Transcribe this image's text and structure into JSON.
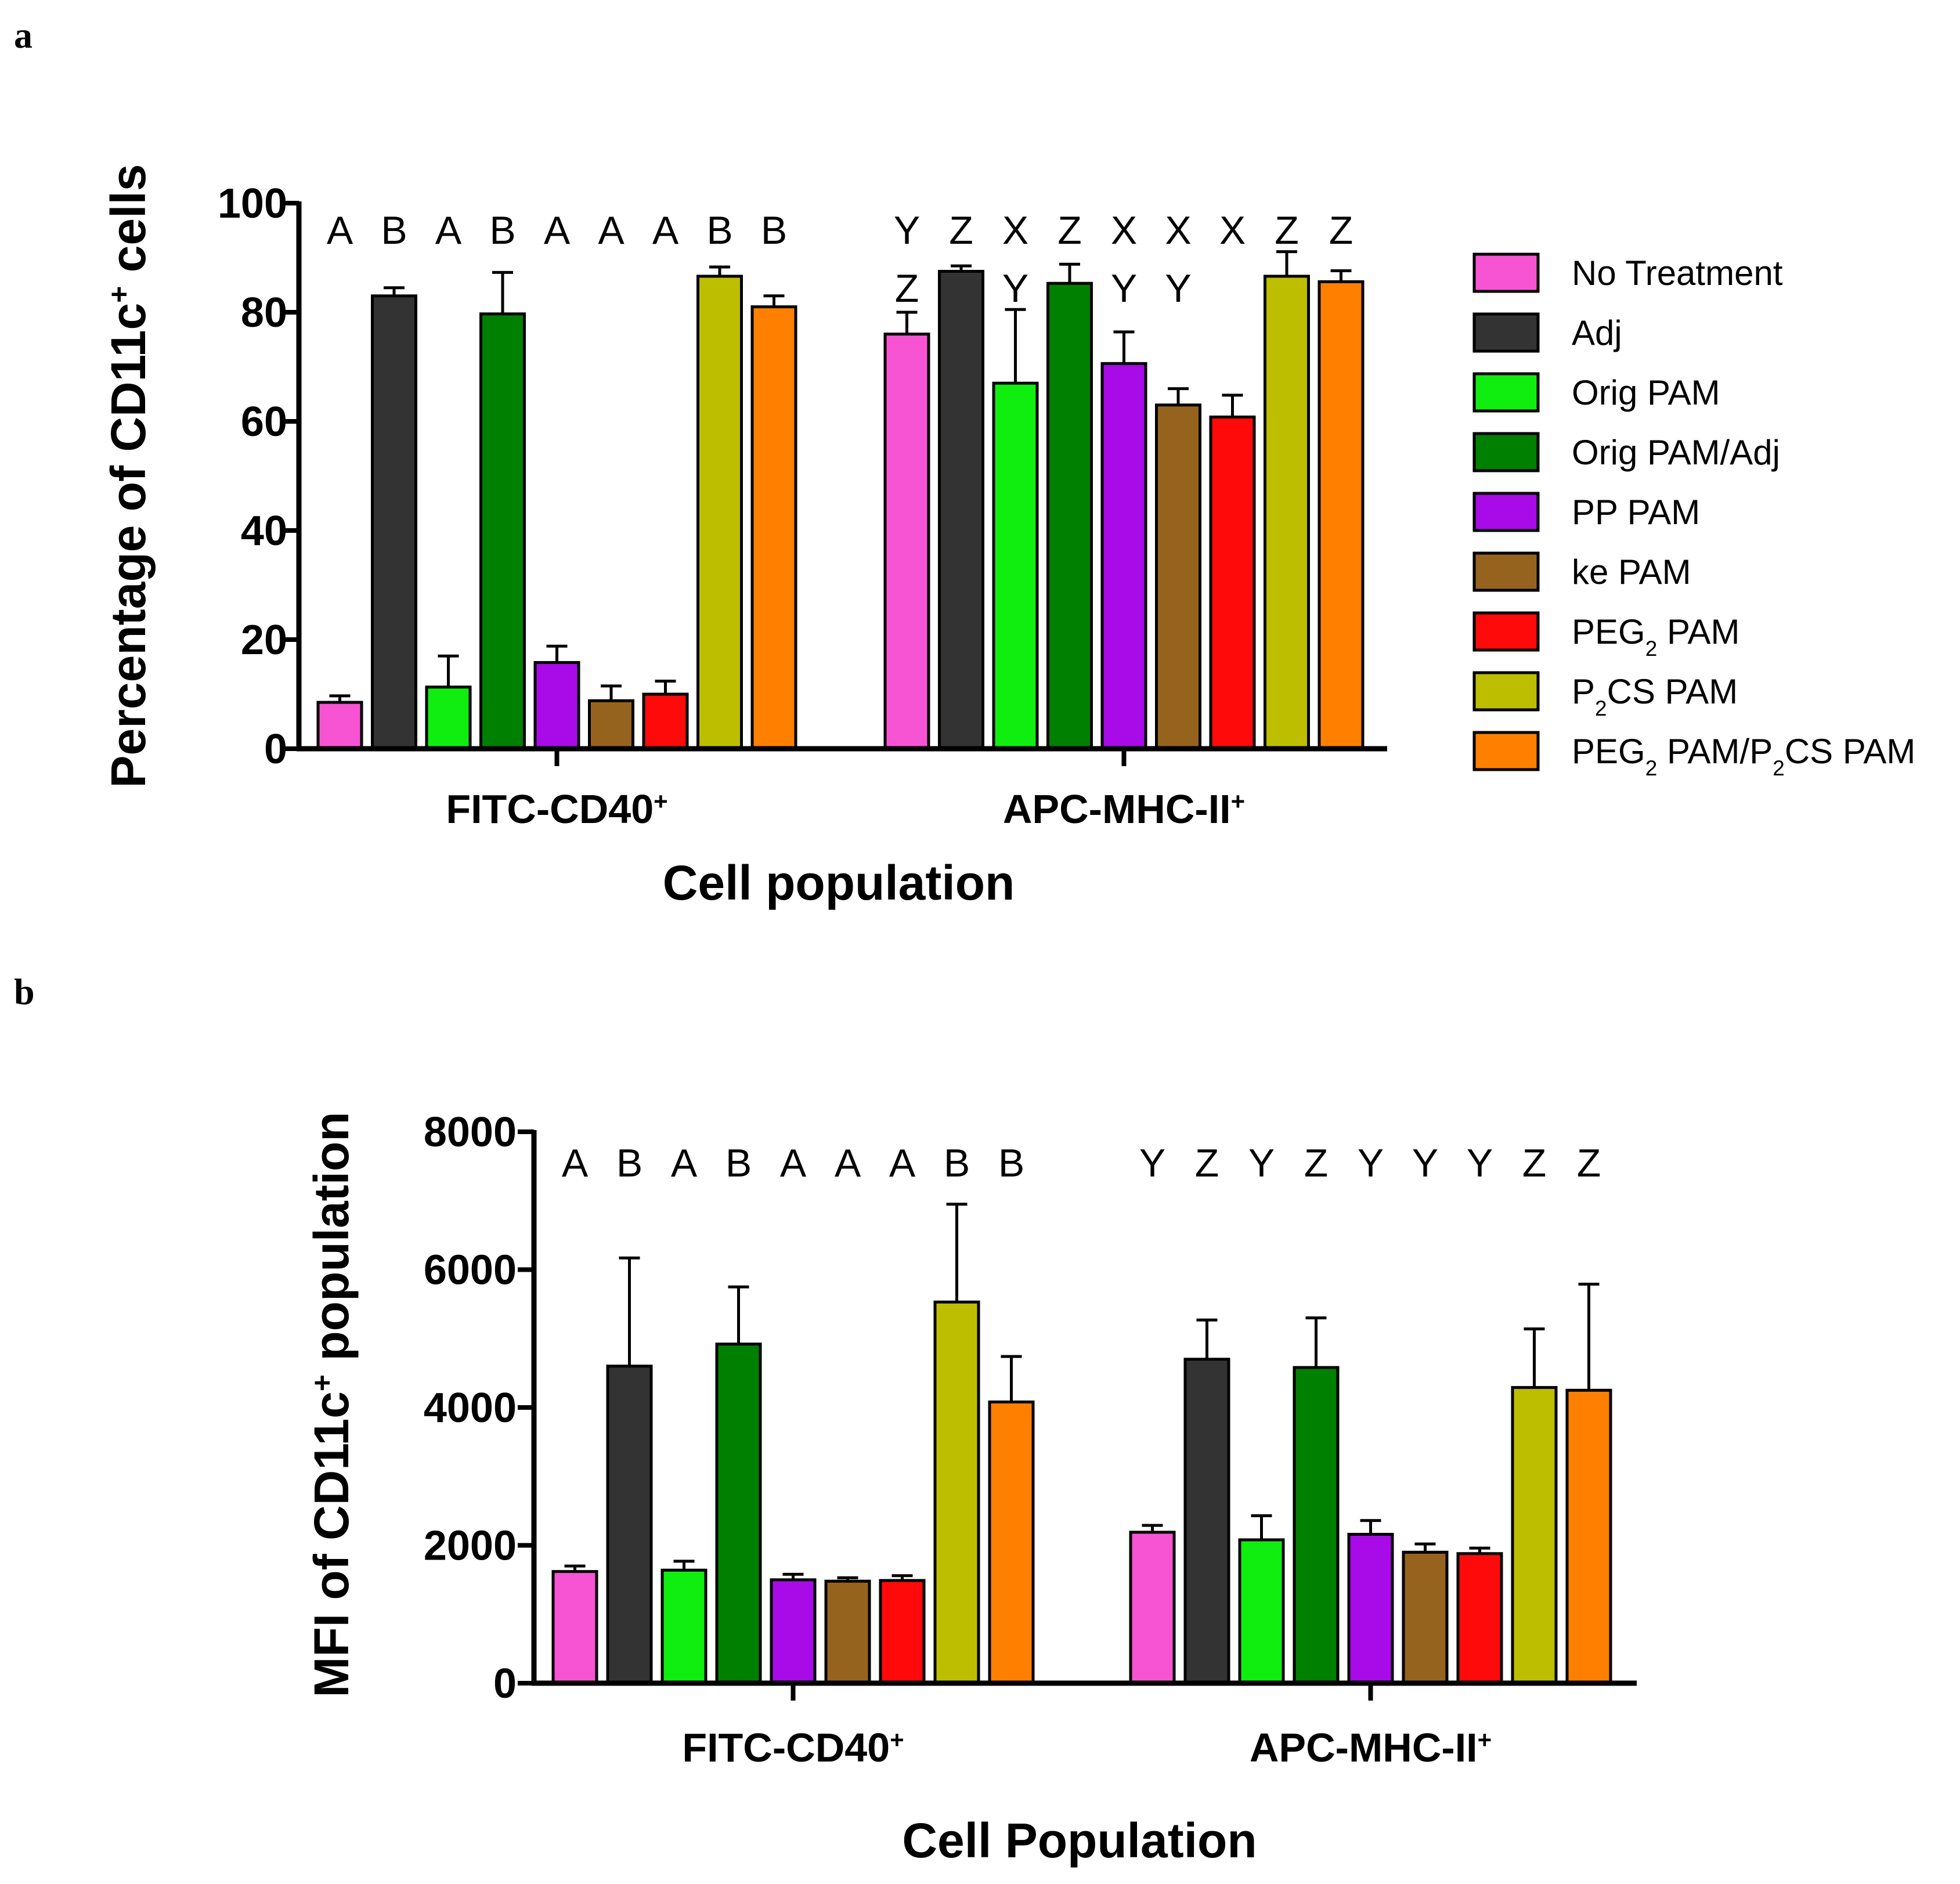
{
  "panel_a_label": "a",
  "panel_b_label": "b",
  "legend": [
    {
      "label": "No Treatment",
      "color": "#f754d3",
      "parts": [
        [
          "No Treatment",
          ""
        ]
      ]
    },
    {
      "label": "Adj",
      "color": "#333333",
      "parts": [
        [
          "Adj",
          ""
        ]
      ]
    },
    {
      "label": "Orig  PAM",
      "color": "#10ee10",
      "parts": [
        [
          "Orig  PAM",
          ""
        ]
      ]
    },
    {
      "label": "Orig  PAM/Adj",
      "color": "#008000",
      "parts": [
        [
          "Orig  PAM/Adj",
          ""
        ]
      ]
    },
    {
      "label": "PP PAM",
      "color": "#a90ae8",
      "parts": [
        [
          "PP PAM",
          ""
        ]
      ]
    },
    {
      "label": "ke PAM",
      "color": "#96631f",
      "parts": [
        [
          "ke PAM",
          ""
        ]
      ]
    },
    {
      "label": "PEG2 PAM",
      "color": "#ff0a0a",
      "parts": [
        [
          "PEG",
          ""
        ],
        [
          "2",
          "sub"
        ],
        [
          " PAM",
          ""
        ]
      ]
    },
    {
      "label": "P2CS PAM",
      "color": "#bebe00",
      "parts": [
        [
          "P",
          ""
        ],
        [
          "2",
          "sub"
        ],
        [
          "CS PAM",
          ""
        ]
      ]
    },
    {
      "label": "PEG2 PAM/P2CS PAM",
      "color": "#ff8000",
      "parts": [
        [
          "PEG",
          ""
        ],
        [
          "2",
          "sub"
        ],
        [
          " PAM/P",
          ""
        ],
        [
          "2",
          "sub"
        ],
        [
          "CS PAM",
          ""
        ]
      ]
    }
  ],
  "chart_data": [
    {
      "id": "a",
      "type": "bar",
      "ylabel": "Percentage of CD11c+ cells",
      "ylabel_parts": [
        [
          "Percentage of CD11c",
          ""
        ],
        [
          "+",
          "sup"
        ],
        [
          " cells",
          ""
        ]
      ],
      "xlabel": "Cell population",
      "ylim": [
        0,
        100
      ],
      "yticks": [
        0,
        20,
        40,
        60,
        80,
        100
      ],
      "categories": [
        "FITC-CD40+",
        "APC-MHC-II+"
      ],
      "category_parts": [
        [
          [
            "FITC-CD40",
            ""
          ],
          [
            "+",
            "sup"
          ]
        ],
        [
          [
            "APC-MHC-II",
            ""
          ],
          [
            "+",
            "sup"
          ]
        ]
      ],
      "series": [
        {
          "name": "No Treatment",
          "values": [
            8.5,
            76
          ],
          "errors": [
            1.2,
            4
          ]
        },
        {
          "name": "Adj",
          "values": [
            83,
            87.5
          ],
          "errors": [
            1.5,
            1
          ]
        },
        {
          "name": "Orig  PAM",
          "values": [
            11.3,
            67
          ],
          "errors": [
            5.7,
            13.5
          ]
        },
        {
          "name": "Orig  PAM/Adj",
          "values": [
            79.7,
            85.3
          ],
          "errors": [
            7.6,
            3.5
          ]
        },
        {
          "name": "PP PAM",
          "values": [
            15.8,
            70.6
          ],
          "errors": [
            3,
            5.8
          ]
        },
        {
          "name": "ke PAM",
          "values": [
            8.8,
            63
          ],
          "errors": [
            2.7,
            3
          ]
        },
        {
          "name": "PEG2 PAM",
          "values": [
            10,
            60.8
          ],
          "errors": [
            2.4,
            4
          ]
        },
        {
          "name": "P2CS PAM",
          "values": [
            86.6,
            86.6
          ],
          "errors": [
            1.7,
            4.5
          ]
        },
        {
          "name": "PEG2 PAM/P2CS PAM",
          "values": [
            81,
            85.6
          ],
          "errors": [
            2,
            2
          ]
        }
      ],
      "significance": [
        [
          "A",
          "B",
          "A",
          "B",
          "A",
          "A",
          "A",
          "B",
          "B"
        ],
        [
          "Y\nZ",
          "Z",
          "X\nY",
          "Z",
          "X\nY",
          "X\nY",
          "X",
          "Z",
          "Z"
        ]
      ]
    },
    {
      "id": "b",
      "type": "bar",
      "ylabel": "MFI of CD11c+ population",
      "ylabel_parts": [
        [
          "MFI of CD11c",
          ""
        ],
        [
          "+",
          "sup"
        ],
        [
          " population",
          ""
        ]
      ],
      "xlabel": "Cell Population",
      "ylim": [
        0,
        8000
      ],
      "yticks": [
        0,
        2000,
        4000,
        6000,
        8000
      ],
      "categories": [
        "FITC-CD40+",
        "APC-MHC-II+"
      ],
      "category_parts": [
        [
          [
            "FITC-CD40",
            ""
          ],
          [
            "+",
            "sup"
          ]
        ],
        [
          [
            "APC-MHC-II",
            ""
          ],
          [
            "+",
            "sup"
          ]
        ]
      ],
      "series": [
        {
          "name": "No Treatment",
          "values": [
            1620,
            2190
          ],
          "errors": [
            80,
            100
          ]
        },
        {
          "name": "Adj",
          "values": [
            4600,
            4700
          ],
          "errors": [
            1570,
            570
          ]
        },
        {
          "name": "Orig  PAM",
          "values": [
            1640,
            2080
          ],
          "errors": [
            130,
            350
          ]
        },
        {
          "name": "Orig  PAM/Adj",
          "values": [
            4920,
            4580
          ],
          "errors": [
            830,
            720
          ]
        },
        {
          "name": "PP PAM",
          "values": [
            1500,
            2160
          ],
          "errors": [
            80,
            200
          ]
        },
        {
          "name": "ke PAM",
          "values": [
            1480,
            1900
          ],
          "errors": [
            50,
            120
          ]
        },
        {
          "name": "PEG2 PAM",
          "values": [
            1490,
            1880
          ],
          "errors": [
            70,
            80
          ]
        },
        {
          "name": "P2CS PAM",
          "values": [
            5530,
            4290
          ],
          "errors": [
            1420,
            850
          ]
        },
        {
          "name": "PEG2 PAM/P2CS PAM",
          "values": [
            4080,
            4250
          ],
          "errors": [
            660,
            1540
          ]
        }
      ],
      "significance": [
        [
          "A",
          "B",
          "A",
          "B",
          "A",
          "A",
          "A",
          "B",
          "B"
        ],
        [
          "Y",
          "Z",
          "Y",
          "Z",
          "Y",
          "Y",
          "Y",
          "Z",
          "Z"
        ]
      ]
    }
  ]
}
